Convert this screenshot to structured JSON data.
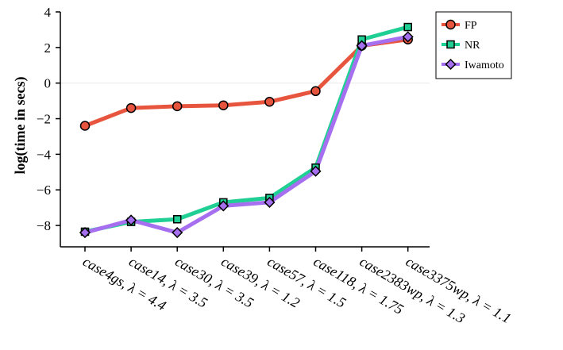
{
  "chart_data": {
    "type": "line",
    "title": "",
    "xlabel": "",
    "ylabel": "log(time in secs)",
    "ylim": [
      -9.2,
      4
    ],
    "yticks": [
      4,
      2,
      0,
      -2,
      -4,
      -6,
      -8
    ],
    "ytick_labels": [
      "4",
      "2",
      "0",
      "−2",
      "−4",
      "−6",
      "−8"
    ],
    "categories": [
      "case4gs, λ = 4.4",
      "case14, λ = 3.5",
      "case30, λ = 3.5",
      "case39, λ = 1.2",
      "case57, λ = 1.5",
      "case118, λ = 1.75",
      "case2383wp, λ = 1.3",
      "case3375wp, λ = 1.1"
    ],
    "series": [
      {
        "name": "FP",
        "color": "#e8553e",
        "marker": "circle",
        "values": [
          -2.4,
          -1.4,
          -1.3,
          -1.25,
          -1.05,
          -0.45,
          2.1,
          2.45
        ]
      },
      {
        "name": "NR",
        "color": "#1fcf94",
        "marker": "square",
        "values": [
          -8.35,
          -7.8,
          -7.65,
          -6.7,
          -6.45,
          -4.75,
          2.45,
          3.15
        ]
      },
      {
        "name": "Iwamoto",
        "color": "#a66ff0",
        "marker": "diamond",
        "values": [
          -8.4,
          -7.7,
          -8.4,
          -6.9,
          -6.7,
          -4.95,
          2.1,
          2.6
        ]
      }
    ],
    "legend": "top-right",
    "zero_line": true
  }
}
